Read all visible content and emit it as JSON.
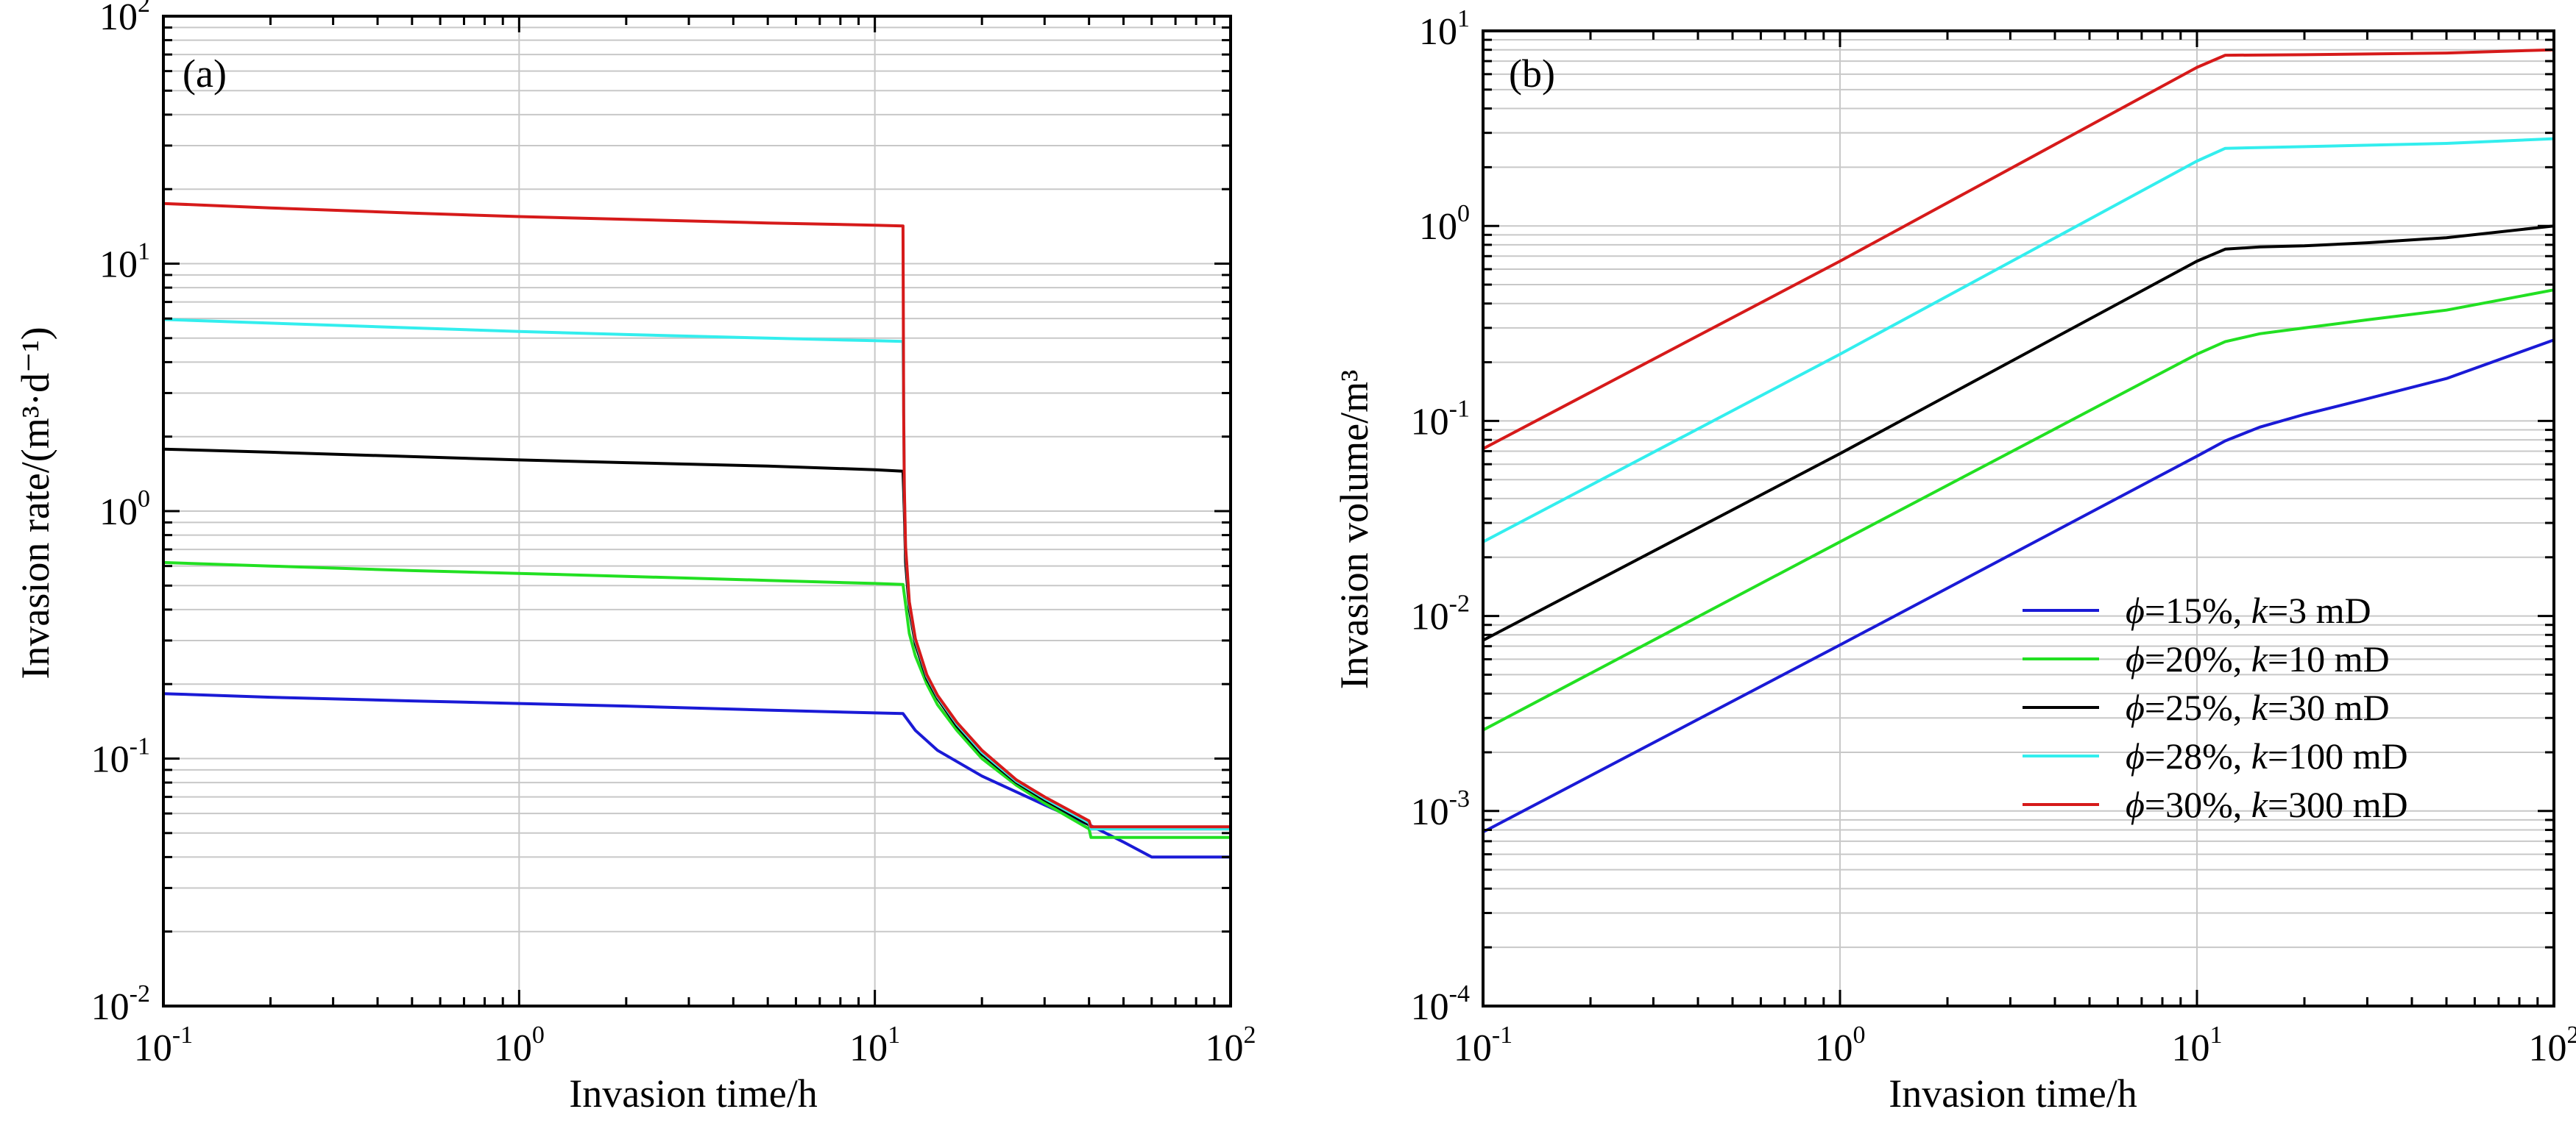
{
  "chart_data": [
    {
      "type": "line",
      "panel_label": "(a)",
      "xlabel": "Invasion time/h",
      "ylabel": "Invasion rate/(m³·d⁻¹)",
      "xscale": "log",
      "yscale": "log",
      "xlim": [
        0.1,
        100
      ],
      "ylim": [
        0.01,
        100
      ],
      "grid": true,
      "x_ticks": [
        {
          "base": "10",
          "exp": "-1",
          "value": 0.1
        },
        {
          "base": "10",
          "exp": "0",
          "value": 1
        },
        {
          "base": "10",
          "exp": "1",
          "value": 10
        },
        {
          "base": "10",
          "exp": "2",
          "value": 100
        }
      ],
      "y_ticks": [
        {
          "base": "10",
          "exp": "-2",
          "value": 0.01
        },
        {
          "base": "10",
          "exp": "-1",
          "value": 0.1
        },
        {
          "base": "10",
          "exp": "0",
          "value": 1
        },
        {
          "base": "10",
          "exp": "1",
          "value": 10
        },
        {
          "base": "10",
          "exp": "2",
          "value": 100
        }
      ],
      "series": [
        {
          "color": "#1a1ad6",
          "points": [
            [
              0.1,
              0.183
            ],
            [
              0.2,
              0.177
            ],
            [
              0.5,
              0.171
            ],
            [
              1,
              0.167
            ],
            [
              2,
              0.163
            ],
            [
              5,
              0.157
            ],
            [
              10,
              0.153
            ],
            [
              12,
              0.152
            ],
            [
              13,
              0.13
            ],
            [
              15,
              0.108
            ],
            [
              20,
              0.085
            ],
            [
              30,
              0.065
            ],
            [
              40,
              0.054
            ],
            [
              50,
              0.046
            ],
            [
              60,
              0.04
            ],
            [
              100,
              0.04
            ]
          ]
        },
        {
          "color": "#22e022",
          "points": [
            [
              0.1,
              0.62
            ],
            [
              0.2,
              0.6
            ],
            [
              0.5,
              0.575
            ],
            [
              1,
              0.56
            ],
            [
              2,
              0.545
            ],
            [
              5,
              0.525
            ],
            [
              10,
              0.51
            ],
            [
              12,
              0.505
            ],
            [
              12.2,
              0.42
            ],
            [
              12.5,
              0.32
            ],
            [
              13,
              0.26
            ],
            [
              14,
              0.2
            ],
            [
              15,
              0.165
            ],
            [
              17,
              0.13
            ],
            [
              20,
              0.1
            ],
            [
              25,
              0.078
            ],
            [
              30,
              0.066
            ],
            [
              40,
              0.052
            ],
            [
              40.5,
              0.048
            ],
            [
              100,
              0.048
            ]
          ]
        },
        {
          "color": "#000000",
          "points": [
            [
              0.1,
              1.78
            ],
            [
              0.2,
              1.73
            ],
            [
              0.5,
              1.66
            ],
            [
              1,
              1.61
            ],
            [
              2,
              1.57
            ],
            [
              5,
              1.52
            ],
            [
              10,
              1.47
            ],
            [
              12,
              1.45
            ],
            [
              12.1,
              1.0
            ],
            [
              12.2,
              0.62
            ],
            [
              12.5,
              0.4
            ],
            [
              13,
              0.29
            ],
            [
              14,
              0.21
            ],
            [
              15,
              0.175
            ],
            [
              17,
              0.135
            ],
            [
              20,
              0.104
            ],
            [
              25,
              0.08
            ],
            [
              30,
              0.068
            ],
            [
              40,
              0.054
            ],
            [
              40.5,
              0.052
            ],
            [
              100,
              0.052
            ]
          ]
        },
        {
          "color": "#33eeee",
          "points": [
            [
              0.1,
              5.95
            ],
            [
              0.2,
              5.75
            ],
            [
              0.5,
              5.5
            ],
            [
              1,
              5.32
            ],
            [
              2,
              5.17
            ],
            [
              5,
              5.0
            ],
            [
              10,
              4.88
            ],
            [
              12,
              4.85
            ],
            [
              12.05,
              2.8
            ],
            [
              12.1,
              1.2
            ],
            [
              12.2,
              0.7
            ],
            [
              12.5,
              0.42
            ],
            [
              13,
              0.3
            ],
            [
              14,
              0.215
            ],
            [
              15,
              0.178
            ],
            [
              17,
              0.138
            ],
            [
              20,
              0.106
            ],
            [
              25,
              0.081
            ],
            [
              30,
              0.069
            ],
            [
              40,
              0.055
            ],
            [
              40.5,
              0.052
            ],
            [
              100,
              0.052
            ]
          ]
        },
        {
          "color": "#d61a1a",
          "points": [
            [
              0.1,
              17.5
            ],
            [
              0.2,
              16.8
            ],
            [
              0.5,
              16.0
            ],
            [
              1,
              15.5
            ],
            [
              2,
              15.1
            ],
            [
              5,
              14.6
            ],
            [
              10,
              14.3
            ],
            [
              12,
              14.2
            ],
            [
              12.02,
              7.0
            ],
            [
              12.05,
              2.5
            ],
            [
              12.1,
              1.25
            ],
            [
              12.2,
              0.72
            ],
            [
              12.5,
              0.43
            ],
            [
              13,
              0.305
            ],
            [
              14,
              0.218
            ],
            [
              15,
              0.18
            ],
            [
              17,
              0.14
            ],
            [
              20,
              0.108
            ],
            [
              25,
              0.082
            ],
            [
              30,
              0.07
            ],
            [
              40,
              0.056
            ],
            [
              40.5,
              0.053
            ],
            [
              100,
              0.053
            ]
          ]
        }
      ]
    },
    {
      "type": "line",
      "panel_label": "(b)",
      "xlabel": "Invasion time/h",
      "ylabel": "Invasion volume/m³",
      "xscale": "log",
      "yscale": "log",
      "xlim": [
        0.1,
        100
      ],
      "ylim": [
        0.0001,
        10
      ],
      "grid": true,
      "legend_position": "lower-right",
      "x_ticks": [
        {
          "base": "10",
          "exp": "-1",
          "value": 0.1
        },
        {
          "base": "10",
          "exp": "0",
          "value": 1
        },
        {
          "base": "10",
          "exp": "1",
          "value": 10
        },
        {
          "base": "10",
          "exp": "2",
          "value": 100
        }
      ],
      "y_ticks": [
        {
          "base": "10",
          "exp": "-4",
          "value": 0.0001
        },
        {
          "base": "10",
          "exp": "-3",
          "value": 0.001
        },
        {
          "base": "10",
          "exp": "-2",
          "value": 0.01
        },
        {
          "base": "10",
          "exp": "-1",
          "value": 0.1
        },
        {
          "base": "10",
          "exp": "0",
          "value": 1
        },
        {
          "base": "10",
          "exp": "1",
          "value": 10
        }
      ],
      "series": [
        {
          "name": "ϕ=15%, k=3 mD",
          "phi": "=15%, ",
          "k": "=3 mD",
          "color": "#1a1ad6",
          "points": [
            [
              0.1,
              0.00078
            ],
            [
              1,
              0.0071
            ],
            [
              10,
              0.066
            ],
            [
              12,
              0.079
            ],
            [
              15,
              0.093
            ],
            [
              20,
              0.108
            ],
            [
              30,
              0.13
            ],
            [
              50,
              0.165
            ],
            [
              100,
              0.26
            ]
          ]
        },
        {
          "name": "ϕ=20%, k=10 mD",
          "phi": "=20%, ",
          "k": "=10 mD",
          "color": "#22e022",
          "points": [
            [
              0.1,
              0.0026
            ],
            [
              1,
              0.024
            ],
            [
              10,
              0.22
            ],
            [
              12,
              0.255
            ],
            [
              15,
              0.28
            ],
            [
              20,
              0.3
            ],
            [
              30,
              0.33
            ],
            [
              50,
              0.37
            ],
            [
              100,
              0.47
            ]
          ]
        },
        {
          "name": "ϕ=25%, k=30 mD",
          "phi": "=25%, ",
          "k": "=30 mD",
          "color": "#000000",
          "points": [
            [
              0.1,
              0.0075
            ],
            [
              1,
              0.068
            ],
            [
              10,
              0.66
            ],
            [
              12,
              0.76
            ],
            [
              15,
              0.78
            ],
            [
              20,
              0.79
            ],
            [
              30,
              0.82
            ],
            [
              50,
              0.87
            ],
            [
              100,
              1.0
            ]
          ]
        },
        {
          "name": "ϕ=28%, k=100 mD",
          "phi": "=28%, ",
          "k": "=100 mD",
          "color": "#33eeee",
          "points": [
            [
              0.1,
              0.024
            ],
            [
              1,
              0.22
            ],
            [
              10,
              2.15
            ],
            [
              12,
              2.5
            ],
            [
              20,
              2.55
            ],
            [
              50,
              2.65
            ],
            [
              100,
              2.8
            ]
          ]
        },
        {
          "name": "ϕ=30%, k=300 mD",
          "phi": "=30%, ",
          "k": "=300 mD",
          "color": "#d61a1a",
          "points": [
            [
              0.1,
              0.072
            ],
            [
              1,
              0.66
            ],
            [
              10,
              6.5
            ],
            [
              12,
              7.5
            ],
            [
              20,
              7.55
            ],
            [
              50,
              7.7
            ],
            [
              100,
              8.0
            ]
          ]
        }
      ]
    }
  ]
}
